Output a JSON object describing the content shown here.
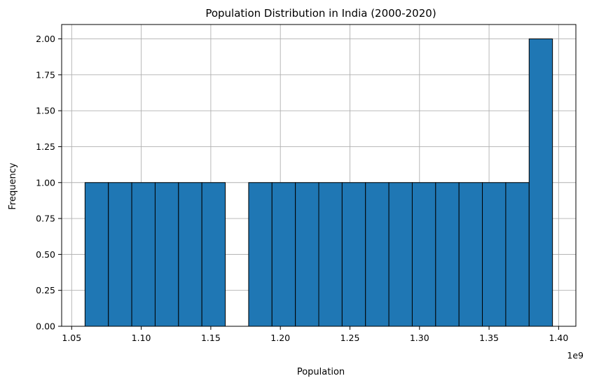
{
  "chart_data": {
    "type": "bar",
    "title": "Population Distribution in India (2000-2020)",
    "xlabel": "Population",
    "ylabel": "Frequency",
    "x_offset_label": "1e9",
    "bar_color": "#1f77b4",
    "edge_color": "#000000",
    "grid": true,
    "bins": [
      {
        "start": 1.0596,
        "end": 1.0764,
        "value": 1
      },
      {
        "start": 1.0764,
        "end": 1.0932,
        "value": 1
      },
      {
        "start": 1.0932,
        "end": 1.11,
        "value": 1
      },
      {
        "start": 1.11,
        "end": 1.1268,
        "value": 1
      },
      {
        "start": 1.1268,
        "end": 1.1436,
        "value": 1
      },
      {
        "start": 1.1436,
        "end": 1.1604,
        "value": 1
      },
      {
        "start": 1.1604,
        "end": 1.1772,
        "value": 0
      },
      {
        "start": 1.1772,
        "end": 1.194,
        "value": 1
      },
      {
        "start": 1.194,
        "end": 1.2108,
        "value": 1
      },
      {
        "start": 1.2108,
        "end": 1.2276,
        "value": 1
      },
      {
        "start": 1.2276,
        "end": 1.2444,
        "value": 1
      },
      {
        "start": 1.2444,
        "end": 1.2612,
        "value": 1
      },
      {
        "start": 1.2612,
        "end": 1.278,
        "value": 1
      },
      {
        "start": 1.278,
        "end": 1.2948,
        "value": 1
      },
      {
        "start": 1.2948,
        "end": 1.3116,
        "value": 1
      },
      {
        "start": 1.3116,
        "end": 1.3284,
        "value": 1
      },
      {
        "start": 1.3284,
        "end": 1.3452,
        "value": 1
      },
      {
        "start": 1.3452,
        "end": 1.362,
        "value": 1
      },
      {
        "start": 1.362,
        "end": 1.3788,
        "value": 1
      },
      {
        "start": 1.3788,
        "end": 1.3956,
        "value": 2
      }
    ],
    "xlim": [
      1.0428,
      1.4124
    ],
    "ylim": [
      0,
      2.1
    ],
    "xticks": [
      {
        "value": 1.05,
        "label": "1.05"
      },
      {
        "value": 1.1,
        "label": "1.10"
      },
      {
        "value": 1.15,
        "label": "1.15"
      },
      {
        "value": 1.2,
        "label": "1.20"
      },
      {
        "value": 1.25,
        "label": "1.25"
      },
      {
        "value": 1.3,
        "label": "1.30"
      },
      {
        "value": 1.35,
        "label": "1.35"
      },
      {
        "value": 1.4,
        "label": "1.40"
      }
    ],
    "yticks": [
      {
        "value": 0.0,
        "label": "0.00"
      },
      {
        "value": 0.25,
        "label": "0.25"
      },
      {
        "value": 0.5,
        "label": "0.50"
      },
      {
        "value": 0.75,
        "label": "0.75"
      },
      {
        "value": 1.0,
        "label": "1.00"
      },
      {
        "value": 1.25,
        "label": "1.25"
      },
      {
        "value": 1.5,
        "label": "1.50"
      },
      {
        "value": 1.75,
        "label": "1.75"
      },
      {
        "value": 2.0,
        "label": "2.00"
      }
    ]
  }
}
